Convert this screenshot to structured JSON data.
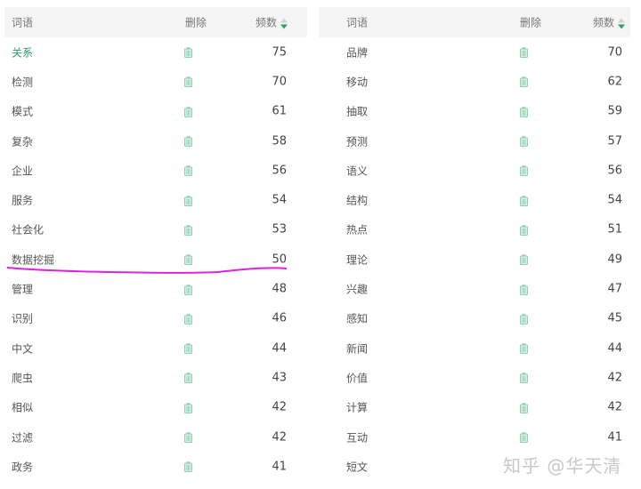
{
  "columns": {
    "word": "词语",
    "delete": "删除",
    "count": "频数"
  },
  "accent_color": "#2e9e6a",
  "icons": {
    "delete": "trash-icon",
    "sort": "sort-desc-icon"
  },
  "left_rows": [
    {
      "word": "关系",
      "count": "75",
      "highlighted": true
    },
    {
      "word": "检测",
      "count": "70"
    },
    {
      "word": "模式",
      "count": "61"
    },
    {
      "word": "复杂",
      "count": "58"
    },
    {
      "word": "企业",
      "count": "56"
    },
    {
      "word": "服务",
      "count": "54"
    },
    {
      "word": "社会化",
      "count": "53"
    },
    {
      "word": "数据挖掘",
      "count": "50"
    },
    {
      "word": "管理",
      "count": "48"
    },
    {
      "word": "识别",
      "count": "46"
    },
    {
      "word": "中文",
      "count": "44"
    },
    {
      "word": "爬虫",
      "count": "43"
    },
    {
      "word": "相似",
      "count": "42"
    },
    {
      "word": "过滤",
      "count": "42"
    },
    {
      "word": "政务",
      "count": "41"
    }
  ],
  "right_rows": [
    {
      "word": "品牌",
      "count": "70"
    },
    {
      "word": "移动",
      "count": "62"
    },
    {
      "word": "抽取",
      "count": "59"
    },
    {
      "word": "预测",
      "count": "57"
    },
    {
      "word": "语义",
      "count": "56"
    },
    {
      "word": "结构",
      "count": "54"
    },
    {
      "word": "热点",
      "count": "51"
    },
    {
      "word": "理论",
      "count": "49"
    },
    {
      "word": "兴趣",
      "count": "47"
    },
    {
      "word": "感知",
      "count": "45"
    },
    {
      "word": "新闻",
      "count": "44"
    },
    {
      "word": "价值",
      "count": "42"
    },
    {
      "word": "计算",
      "count": "42"
    },
    {
      "word": "互动",
      "count": "41"
    },
    {
      "word": "短文",
      "count": ""
    }
  ],
  "watermark": "知乎 @华天清"
}
